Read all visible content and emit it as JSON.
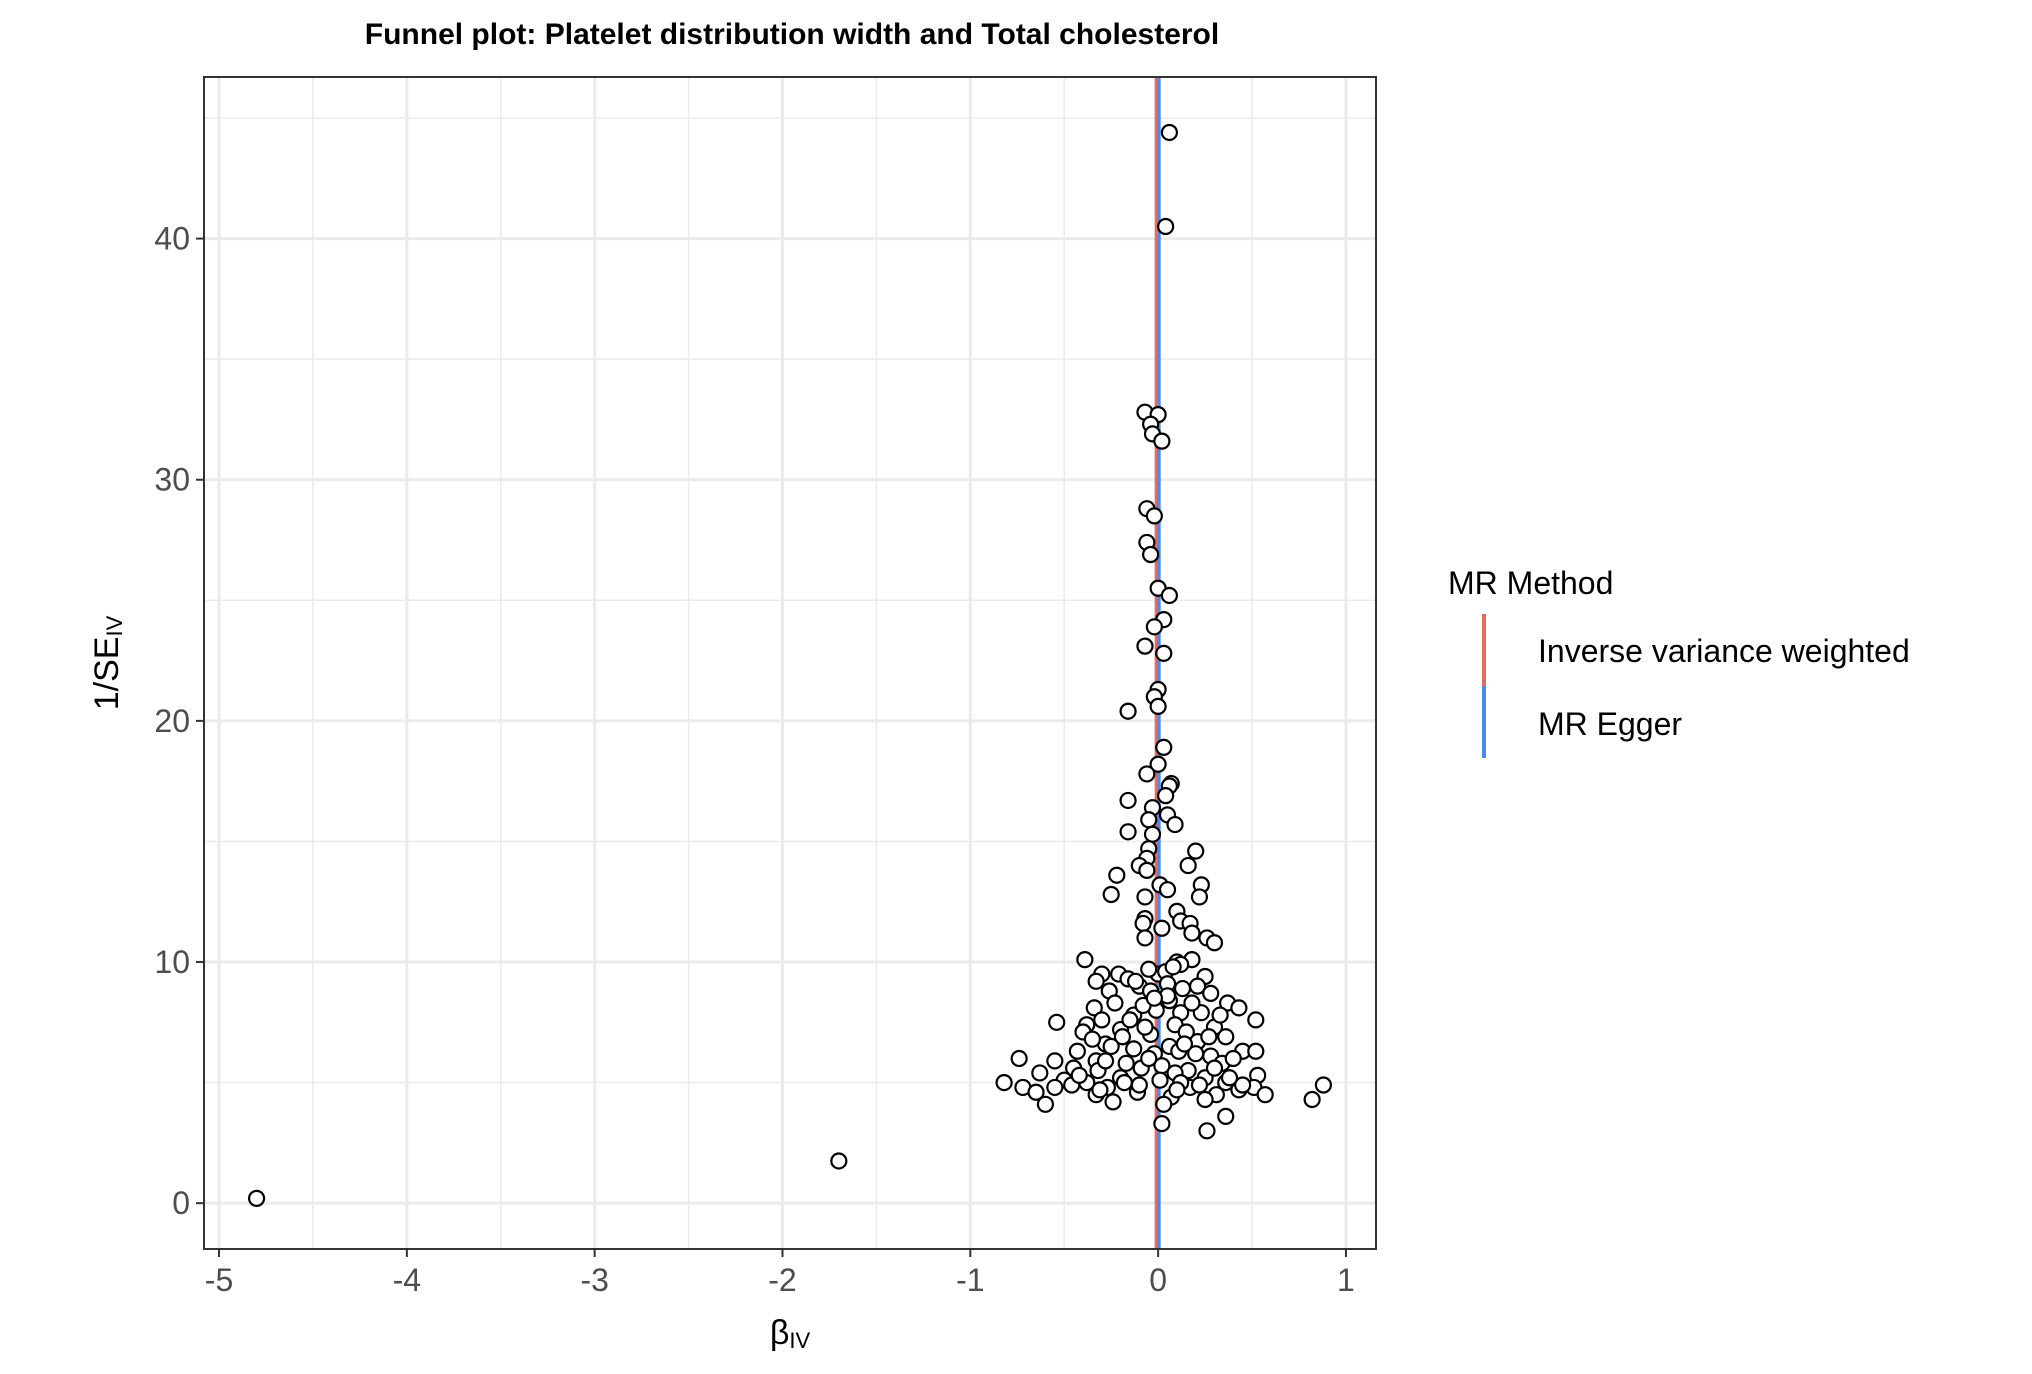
{
  "chart_data": {
    "type": "scatter",
    "title": "Funnel plot: Platelet distribution width and Total cholesterol",
    "xlabel": {
      "main": "β",
      "sub": "IV"
    },
    "ylabel": {
      "main": "1/SE",
      "sub": "IV"
    },
    "xlim": [
      -5.08,
      1.16
    ],
    "ylim": [
      -1.9,
      46.7
    ],
    "xticks": [
      -5,
      -4,
      -3,
      -2,
      -1,
      0,
      1
    ],
    "xtick_labels": [
      "-5",
      "-4",
      "-3",
      "-2",
      "-1",
      "0",
      "1"
    ],
    "yticks": [
      0,
      10,
      20,
      30,
      40
    ],
    "ytick_labels": [
      "0",
      "10",
      "20",
      "30",
      "40"
    ],
    "grid": true,
    "legend": {
      "title": "MR Method",
      "position": "right",
      "entries": [
        {
          "label": "Inverse variance weighted",
          "color": "#e46c62"
        },
        {
          "label": "MR Egger",
          "color": "#4b8ce8"
        }
      ]
    },
    "vlines": [
      {
        "name": "Inverse variance weighted",
        "x": -0.01,
        "color": "#e46c62"
      },
      {
        "name": "MR Egger",
        "x": 0.005,
        "color": "#4b8ce8"
      }
    ],
    "points": [
      [
        -4.8,
        0.2
      ],
      [
        -1.7,
        1.75
      ],
      [
        0.06,
        44.4
      ],
      [
        0.04,
        40.5
      ],
      [
        -0.07,
        32.8
      ],
      [
        0.0,
        32.7
      ],
      [
        -0.04,
        32.3
      ],
      [
        -0.03,
        31.9
      ],
      [
        0.02,
        31.6
      ],
      [
        -0.06,
        28.8
      ],
      [
        -0.02,
        28.5
      ],
      [
        -0.06,
        27.4
      ],
      [
        -0.04,
        26.9
      ],
      [
        0.0,
        25.5
      ],
      [
        0.06,
        25.2
      ],
      [
        0.03,
        24.2
      ],
      [
        -0.02,
        23.9
      ],
      [
        -0.07,
        23.1
      ],
      [
        0.03,
        22.8
      ],
      [
        0.0,
        21.3
      ],
      [
        -0.02,
        21.0
      ],
      [
        0.0,
        20.6
      ],
      [
        -0.16,
        20.4
      ],
      [
        0.03,
        18.9
      ],
      [
        0.0,
        18.2
      ],
      [
        -0.06,
        17.8
      ],
      [
        0.07,
        17.4
      ],
      [
        0.06,
        17.3
      ],
      [
        0.04,
        16.9
      ],
      [
        -0.16,
        16.7
      ],
      [
        -0.03,
        16.4
      ],
      [
        0.05,
        16.1
      ],
      [
        0.09,
        15.7
      ],
      [
        -0.05,
        15.9
      ],
      [
        -0.16,
        15.4
      ],
      [
        -0.03,
        15.3
      ],
      [
        -0.05,
        14.7
      ],
      [
        0.2,
        14.6
      ],
      [
        -0.06,
        14.3
      ],
      [
        -0.1,
        14.0
      ],
      [
        0.16,
        14.0
      ],
      [
        -0.06,
        13.8
      ],
      [
        -0.22,
        13.6
      ],
      [
        0.01,
        13.2
      ],
      [
        0.23,
        13.2
      ],
      [
        0.05,
        13.0
      ],
      [
        -0.25,
        12.8
      ],
      [
        -0.07,
        12.7
      ],
      [
        0.22,
        12.7
      ],
      [
        0.1,
        12.1
      ],
      [
        -0.07,
        11.8
      ],
      [
        -0.08,
        11.6
      ],
      [
        0.12,
        11.7
      ],
      [
        0.17,
        11.6
      ],
      [
        0.02,
        11.4
      ],
      [
        0.18,
        11.2
      ],
      [
        -0.07,
        11.0
      ],
      [
        0.26,
        11.0
      ],
      [
        0.3,
        10.8
      ],
      [
        -0.39,
        10.1
      ],
      [
        0.18,
        10.1
      ],
      [
        0.1,
        10.0
      ],
      [
        0.0,
        9.5
      ],
      [
        0.12,
        9.9
      ],
      [
        -0.05,
        9.7
      ],
      [
        0.04,
        9.6
      ],
      [
        -0.3,
        9.5
      ],
      [
        -0.21,
        9.5
      ],
      [
        0.25,
        9.4
      ],
      [
        -0.16,
        9.3
      ],
      [
        -0.33,
        9.2
      ],
      [
        -0.1,
        9.0
      ],
      [
        0.05,
        9.1
      ],
      [
        0.13,
        8.9
      ],
      [
        0.21,
        9.0
      ],
      [
        -0.04,
        8.8
      ],
      [
        -0.26,
        8.8
      ],
      [
        0.28,
        8.7
      ],
      [
        0.06,
        8.4
      ],
      [
        -0.23,
        8.3
      ],
      [
        0.37,
        8.3
      ],
      [
        0.43,
        8.1
      ],
      [
        -0.34,
        8.1
      ],
      [
        -0.01,
        8.0
      ],
      [
        0.12,
        7.9
      ],
      [
        -0.13,
        7.8
      ],
      [
        0.23,
        7.9
      ],
      [
        -0.3,
        7.6
      ],
      [
        0.52,
        7.6
      ],
      [
        -0.54,
        7.5
      ],
      [
        -0.38,
        7.4
      ],
      [
        0.09,
        7.4
      ],
      [
        -0.2,
        7.2
      ],
      [
        0.3,
        7.3
      ],
      [
        -0.4,
        7.1
      ],
      [
        -0.04,
        7.0
      ],
      [
        0.36,
        6.9
      ],
      [
        -0.19,
        6.9
      ],
      [
        0.21,
        6.7
      ],
      [
        -0.28,
        6.6
      ],
      [
        0.06,
        6.5
      ],
      [
        -0.13,
        6.4
      ],
      [
        0.11,
        6.3
      ],
      [
        -0.43,
        6.3
      ],
      [
        0.45,
        6.3
      ],
      [
        0.52,
        6.3
      ],
      [
        -0.02,
        6.2
      ],
      [
        0.28,
        6.1
      ],
      [
        -0.74,
        6.0
      ],
      [
        -0.55,
        5.9
      ],
      [
        -0.33,
        5.9
      ],
      [
        -0.17,
        5.8
      ],
      [
        0.34,
        5.8
      ],
      [
        0.02,
        5.7
      ],
      [
        -0.09,
        5.6
      ],
      [
        0.16,
        5.5
      ],
      [
        -0.32,
        5.5
      ],
      [
        0.09,
        5.4
      ],
      [
        -0.63,
        5.4
      ],
      [
        0.53,
        5.3
      ],
      [
        0.25,
        5.2
      ],
      [
        -0.2,
        5.2
      ],
      [
        0.01,
        5.1
      ],
      [
        -0.5,
        5.1
      ],
      [
        -0.38,
        5.0
      ],
      [
        0.36,
        5.0
      ],
      [
        -0.82,
        5.0
      ],
      [
        0.88,
        4.9
      ],
      [
        -0.46,
        4.9
      ],
      [
        0.17,
        4.8
      ],
      [
        -0.27,
        4.8
      ],
      [
        0.51,
        4.8
      ],
      [
        -0.72,
        4.8
      ],
      [
        0.43,
        4.7
      ],
      [
        -0.11,
        4.6
      ],
      [
        0.57,
        4.5
      ],
      [
        -0.65,
        4.6
      ],
      [
        0.31,
        4.5
      ],
      [
        -0.33,
        4.5
      ],
      [
        0.07,
        4.4
      ],
      [
        0.25,
        4.3
      ],
      [
        0.82,
        4.3
      ],
      [
        -0.24,
        4.2
      ],
      [
        0.03,
        4.1
      ],
      [
        -0.6,
        4.1
      ],
      [
        0.36,
        3.6
      ],
      [
        0.02,
        3.3
      ],
      [
        0.26,
        3.0
      ],
      [
        -0.1,
        4.9
      ],
      [
        0.12,
        5.0
      ],
      [
        -0.05,
        6.0
      ],
      [
        0.2,
        6.2
      ],
      [
        -0.25,
        6.5
      ],
      [
        0.15,
        7.1
      ],
      [
        -0.15,
        7.6
      ],
      [
        0.05,
        8.6
      ],
      [
        -0.08,
        8.2
      ],
      [
        0.3,
        5.6
      ],
      [
        -0.45,
        5.6
      ],
      [
        0.4,
        6.0
      ],
      [
        -0.35,
        6.8
      ],
      [
        0.1,
        4.7
      ],
      [
        -0.18,
        5.0
      ],
      [
        0.22,
        4.9
      ],
      [
        -0.28,
        5.9
      ],
      [
        0.33,
        7.8
      ],
      [
        0.18,
        8.3
      ],
      [
        -0.12,
        9.2
      ],
      [
        0.08,
        9.8
      ],
      [
        -0.02,
        8.5
      ],
      [
        0.45,
        4.9
      ],
      [
        -0.55,
        4.8
      ],
      [
        0.14,
        6.6
      ],
      [
        -0.07,
        7.3
      ],
      [
        0.27,
        6.9
      ],
      [
        -0.31,
        4.7
      ],
      [
        0.38,
        5.2
      ],
      [
        -0.42,
        5.3
      ]
    ]
  }
}
